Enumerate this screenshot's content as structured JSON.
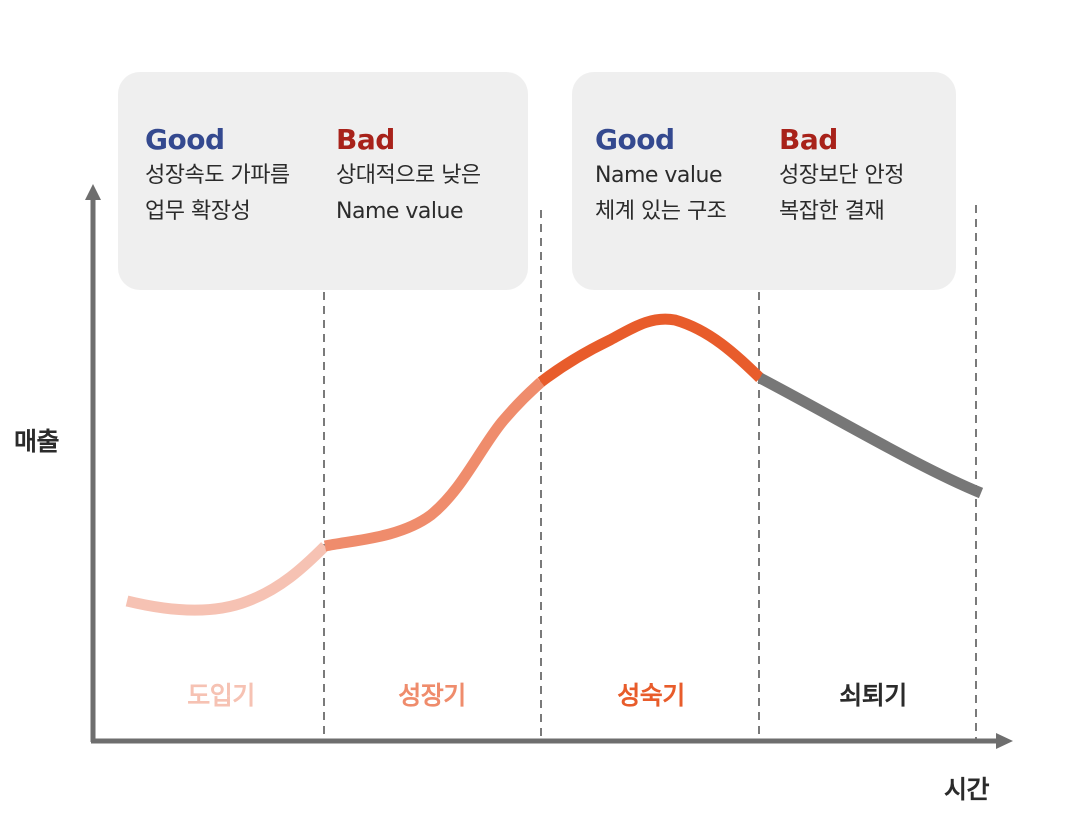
{
  "colors": {
    "good": "#34498f",
    "bad": "#a8221a",
    "intro": "#f6c2b3",
    "growth": "#ef8c6c",
    "maturity": "#e85c2b",
    "decline": "#777777",
    "axis": "#6e6e6e",
    "box_bg": "#efefef"
  },
  "axes": {
    "y_label": "매출",
    "x_label": "시간"
  },
  "boxes": [
    {
      "good": {
        "title": "Good",
        "lines": [
          "성장속도 가파름",
          "업무 확장성"
        ]
      },
      "bad": {
        "title": "Bad",
        "lines": [
          "상대적으로 낮은",
          "Name value"
        ]
      }
    },
    {
      "good": {
        "title": "Good",
        "lines": [
          "Name value",
          "체계 있는 구조"
        ]
      },
      "bad": {
        "title": "Bad",
        "lines": [
          "성장보단 안정",
          "복잡한 결재"
        ]
      }
    }
  ],
  "stages": [
    {
      "label": "도입기"
    },
    {
      "label": "성장기"
    },
    {
      "label": "성숙기"
    },
    {
      "label": "쇠퇴기"
    }
  ]
}
